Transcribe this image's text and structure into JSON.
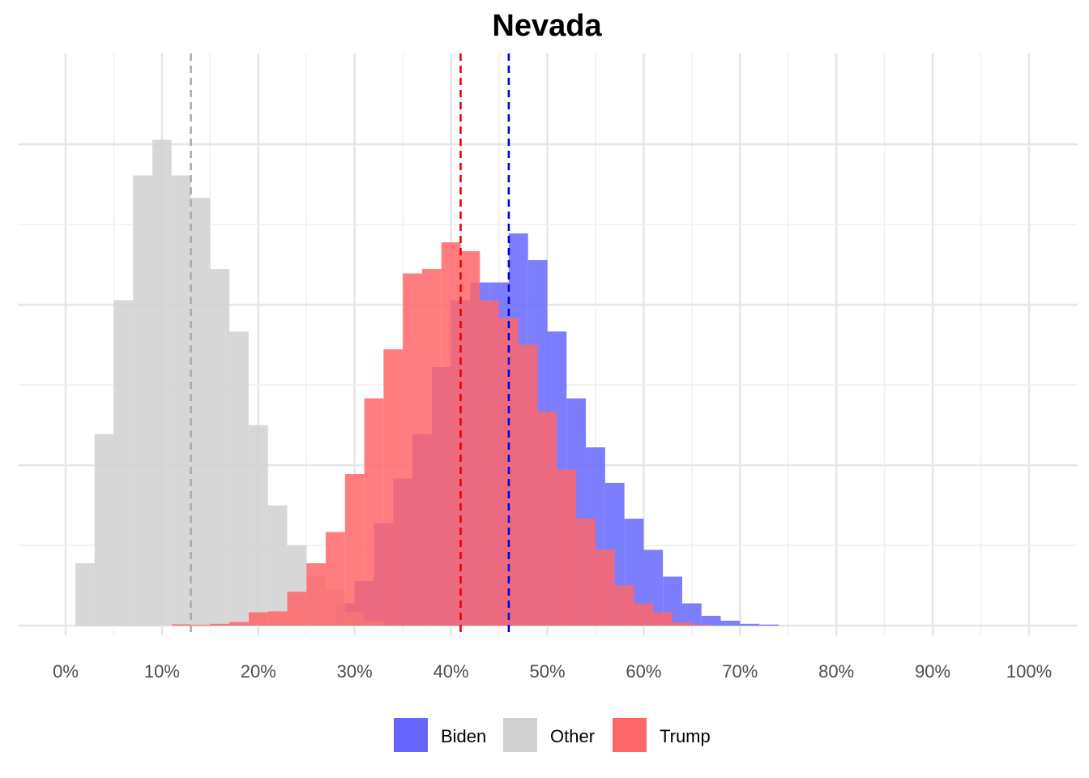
{
  "chart_data": {
    "type": "histogram",
    "title": "Nevada",
    "xlabel": "",
    "ylabel": "",
    "xlim": [
      -0.05,
      1.05
    ],
    "ylim": [
      0,
      1.0
    ],
    "x_ticks": [
      0,
      0.1,
      0.2,
      0.3,
      0.4,
      0.5,
      0.6,
      0.7,
      0.8,
      0.9,
      1.0
    ],
    "x_tick_labels": [
      "0%",
      "10%",
      "20%",
      "30%",
      "40%",
      "50%",
      "60%",
      "70%",
      "80%",
      "90%",
      "100%"
    ],
    "y_ticks_visible": false,
    "bin_width": 0.02,
    "grid": true,
    "legend_position": "bottom",
    "series": [
      {
        "name": "Biden",
        "color": "#6666ff",
        "mean_line": 0.46,
        "mean_line_color": "#0000dd",
        "bins": [
          {
            "x0": 0.28,
            "x1": 0.3,
            "y": 0.025
          },
          {
            "x0": 0.3,
            "x1": 0.32,
            "y": 0.05
          },
          {
            "x0": 0.32,
            "x1": 0.34,
            "y": 0.115
          },
          {
            "x0": 0.34,
            "x1": 0.36,
            "y": 0.165
          },
          {
            "x0": 0.36,
            "x1": 0.38,
            "y": 0.215
          },
          {
            "x0": 0.38,
            "x1": 0.4,
            "y": 0.29
          },
          {
            "x0": 0.4,
            "x1": 0.42,
            "y": 0.365
          },
          {
            "x0": 0.42,
            "x1": 0.44,
            "y": 0.385
          },
          {
            "x0": 0.44,
            "x1": 0.46,
            "y": 0.385
          },
          {
            "x0": 0.46,
            "x1": 0.48,
            "y": 0.44
          },
          {
            "x0": 0.48,
            "x1": 0.5,
            "y": 0.41
          },
          {
            "x0": 0.5,
            "x1": 0.52,
            "y": 0.33
          },
          {
            "x0": 0.52,
            "x1": 0.54,
            "y": 0.255
          },
          {
            "x0": 0.54,
            "x1": 0.56,
            "y": 0.2
          },
          {
            "x0": 0.56,
            "x1": 0.58,
            "y": 0.16
          },
          {
            "x0": 0.58,
            "x1": 0.6,
            "y": 0.12
          },
          {
            "x0": 0.6,
            "x1": 0.62,
            "y": 0.085
          },
          {
            "x0": 0.62,
            "x1": 0.64,
            "y": 0.055
          },
          {
            "x0": 0.64,
            "x1": 0.66,
            "y": 0.025
          },
          {
            "x0": 0.66,
            "x1": 0.68,
            "y": 0.011
          },
          {
            "x0": 0.68,
            "x1": 0.7,
            "y": 0.0055
          },
          {
            "x0": 0.7,
            "x1": 0.72,
            "y": 0.002
          },
          {
            "x0": 0.72,
            "x1": 0.74,
            "y": 0.0012
          }
        ]
      },
      {
        "name": "Other",
        "color": "#d0d0d0",
        "mean_line": 0.13,
        "mean_line_color": "#aaaaaa",
        "bins": [
          {
            "x0": 0.01,
            "x1": 0.03,
            "y": 0.07
          },
          {
            "x0": 0.03,
            "x1": 0.05,
            "y": 0.215
          },
          {
            "x0": 0.05,
            "x1": 0.07,
            "y": 0.365
          },
          {
            "x0": 0.07,
            "x1": 0.09,
            "y": 0.505
          },
          {
            "x0": 0.09,
            "x1": 0.11,
            "y": 0.545
          },
          {
            "x0": 0.11,
            "x1": 0.13,
            "y": 0.505
          },
          {
            "x0": 0.13,
            "x1": 0.15,
            "y": 0.48
          },
          {
            "x0": 0.15,
            "x1": 0.17,
            "y": 0.4
          },
          {
            "x0": 0.17,
            "x1": 0.19,
            "y": 0.33
          },
          {
            "x0": 0.19,
            "x1": 0.21,
            "y": 0.225
          },
          {
            "x0": 0.21,
            "x1": 0.23,
            "y": 0.135
          },
          {
            "x0": 0.23,
            "x1": 0.25,
            "y": 0.09
          },
          {
            "x0": 0.25,
            "x1": 0.27,
            "y": 0.055
          },
          {
            "x0": 0.27,
            "x1": 0.29,
            "y": 0.04
          },
          {
            "x0": 0.29,
            "x1": 0.31,
            "y": 0.015
          },
          {
            "x0": 0.31,
            "x1": 0.33,
            "y": 0.005
          }
        ]
      },
      {
        "name": "Trump",
        "color": "#ff6669",
        "mean_line": 0.41,
        "mean_line_color": "#ee0000",
        "bins": [
          {
            "x0": 0.11,
            "x1": 0.13,
            "y": 0.0015
          },
          {
            "x0": 0.13,
            "x1": 0.15,
            "y": 0.001
          },
          {
            "x0": 0.15,
            "x1": 0.17,
            "y": 0.002
          },
          {
            "x0": 0.17,
            "x1": 0.19,
            "y": 0.004
          },
          {
            "x0": 0.19,
            "x1": 0.21,
            "y": 0.015
          },
          {
            "x0": 0.21,
            "x1": 0.23,
            "y": 0.016
          },
          {
            "x0": 0.23,
            "x1": 0.25,
            "y": 0.038
          },
          {
            "x0": 0.25,
            "x1": 0.27,
            "y": 0.07
          },
          {
            "x0": 0.27,
            "x1": 0.29,
            "y": 0.105
          },
          {
            "x0": 0.29,
            "x1": 0.31,
            "y": 0.17
          },
          {
            "x0": 0.31,
            "x1": 0.33,
            "y": 0.255
          },
          {
            "x0": 0.33,
            "x1": 0.35,
            "y": 0.31
          },
          {
            "x0": 0.35,
            "x1": 0.37,
            "y": 0.395
          },
          {
            "x0": 0.37,
            "x1": 0.39,
            "y": 0.4
          },
          {
            "x0": 0.39,
            "x1": 0.41,
            "y": 0.43
          },
          {
            "x0": 0.41,
            "x1": 0.43,
            "y": 0.42
          },
          {
            "x0": 0.43,
            "x1": 0.45,
            "y": 0.365
          },
          {
            "x0": 0.45,
            "x1": 0.47,
            "y": 0.345
          },
          {
            "x0": 0.47,
            "x1": 0.49,
            "y": 0.315
          },
          {
            "x0": 0.49,
            "x1": 0.51,
            "y": 0.24
          },
          {
            "x0": 0.51,
            "x1": 0.53,
            "y": 0.175
          },
          {
            "x0": 0.53,
            "x1": 0.55,
            "y": 0.12
          },
          {
            "x0": 0.55,
            "x1": 0.57,
            "y": 0.085
          },
          {
            "x0": 0.57,
            "x1": 0.59,
            "y": 0.045
          },
          {
            "x0": 0.59,
            "x1": 0.61,
            "y": 0.025
          },
          {
            "x0": 0.61,
            "x1": 0.63,
            "y": 0.015
          },
          {
            "x0": 0.63,
            "x1": 0.65,
            "y": 0.0035
          },
          {
            "x0": 0.65,
            "x1": 0.67,
            "y": 0.001
          }
        ]
      }
    ],
    "legend": [
      "Biden",
      "Other",
      "Trump"
    ]
  }
}
